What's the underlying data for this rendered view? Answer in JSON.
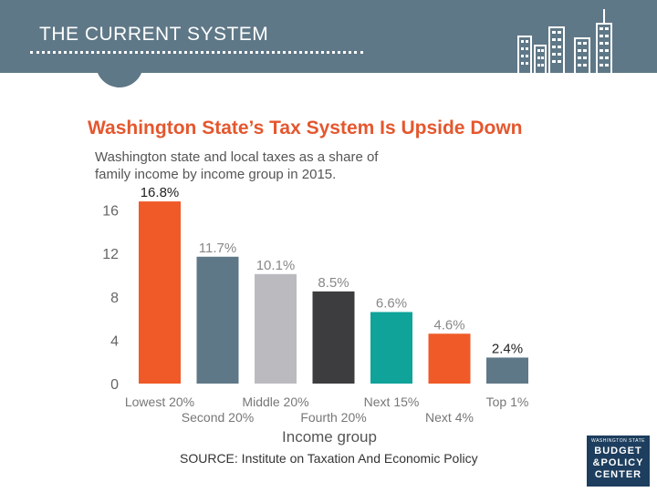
{
  "header": {
    "title": "THE CURRENT SYSTEM"
  },
  "chart_data": {
    "type": "bar",
    "title": "Washington State’s Tax System Is Upside Down",
    "subtitle": "Washington state and local taxes as a share of family income by income group in 2015.",
    "categories": [
      "Lowest 20%",
      "Second 20%",
      "Middle 20%",
      "Fourth 20%",
      "Next 15%",
      "Next 4%",
      "Top 1%"
    ],
    "values": [
      16.8,
      11.7,
      10.1,
      8.5,
      6.6,
      4.6,
      2.4
    ],
    "data_labels": [
      "16.8%",
      "11.7%",
      "10.1%",
      "8.5%",
      "6.6%",
      "4.6%",
      "2.4%"
    ],
    "bar_colors": [
      "#f05a28",
      "#5f7887",
      "#bbbbbf",
      "#3d3d3f",
      "#0fa39a",
      "#f05a28",
      "#5f7887"
    ],
    "label_colors": [
      "#222222",
      "#888888",
      "#888888",
      "#888888",
      "#888888",
      "#888888",
      "#222222"
    ],
    "yticks": [
      "0",
      "4",
      "8",
      "12",
      "16"
    ],
    "ylim": [
      0,
      18
    ],
    "xlabel": "Income group",
    "ylabel": "",
    "grid": false
  },
  "source": "SOURCE: Institute on Taxation And Economic Policy",
  "logo": {
    "small": "WASHINGTON STATE",
    "line1": "BUDGET",
    "line2": "&POLICY",
    "line3": "CENTER"
  }
}
